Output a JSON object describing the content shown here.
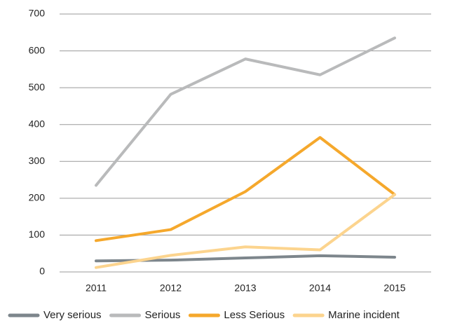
{
  "chart_data": {
    "type": "line",
    "categories": [
      "2011",
      "2012",
      "2013",
      "2014",
      "2015"
    ],
    "series": [
      {
        "name": "Very serious",
        "color": "#7d868c",
        "values": [
          30,
          32,
          38,
          44,
          40
        ]
      },
      {
        "name": "Serious",
        "color": "#b9babb",
        "values": [
          235,
          482,
          578,
          535,
          635
        ]
      },
      {
        "name": "Less Serious",
        "color": "#f5a82c",
        "values": [
          85,
          115,
          218,
          365,
          210
        ]
      },
      {
        "name": "Marine incident",
        "color": "#fcd48e",
        "values": [
          12,
          45,
          68,
          60,
          210
        ]
      }
    ],
    "ylim": [
      0,
      700
    ],
    "yticks": [
      0,
      100,
      200,
      300,
      400,
      500,
      600,
      700
    ],
    "grid": true,
    "legend": "bottom"
  }
}
